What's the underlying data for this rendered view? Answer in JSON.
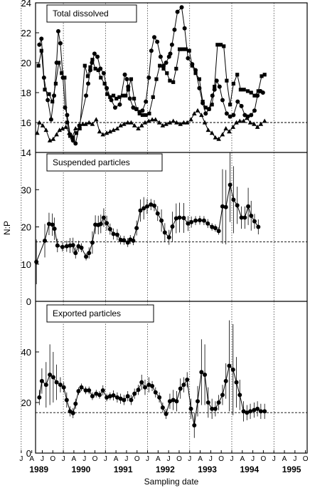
{
  "chart_data": {
    "type": "line",
    "ylabel": "N:P",
    "xlabel": "Sampling date",
    "x_ticks": {
      "months": [
        "J",
        "A",
        "J",
        "O",
        "J",
        "A",
        "J",
        "O",
        "J",
        "A",
        "J",
        "O",
        "J",
        "A",
        "J",
        "O",
        "J",
        "A",
        "J",
        "O",
        "J",
        "A",
        "J",
        "O",
        "J",
        "A",
        "J",
        "O"
      ],
      "years": [
        "1989",
        "1990",
        "1991",
        "1992",
        "1993",
        "1994",
        "1995"
      ]
    },
    "reference_line": 16,
    "panels": [
      {
        "title": "Total dissolved",
        "ylim": [
          14,
          24
        ],
        "yticks": [
          "14",
          "16",
          "18",
          "20",
          "22",
          "24"
        ],
        "series": [
          {
            "marker": "circle",
            "x": [
              1989.47,
              1989.52,
              1989.58,
              1989.67,
              1989.75,
              1989.82,
              1989.88,
              1989.92,
              1989.97,
              1990.03,
              1990.08,
              1990.13,
              1990.2,
              1990.27,
              1990.33,
              1990.42,
              1990.58,
              1990.63,
              1990.68,
              1990.72,
              1990.78,
              1990.85,
              1990.92,
              1991.0,
              1991.07,
              1991.18,
              1991.27,
              1991.38,
              1991.5,
              1991.55,
              1991.58,
              1991.62,
              1991.7,
              1991.77,
              1991.85,
              1991.92,
              1992.0,
              1992.07,
              1992.13,
              1992.2,
              1992.27,
              1992.35,
              1992.42,
              1992.48,
              1992.55,
              1992.58,
              1992.62,
              1992.68,
              1992.75,
              1992.85,
              1992.92,
              1993.0,
              1993.1,
              1993.18,
              1993.27,
              1993.35,
              1993.42,
              1993.5,
              1993.58,
              1993.63,
              1993.68,
              1993.75,
              1993.82,
              1993.92,
              1994.0,
              1994.08,
              1994.18,
              1994.27,
              1994.35,
              1994.42,
              1994.5,
              1994.58,
              1994.65,
              1994.72,
              1994.78
            ],
            "y": [
              21.2,
              21.6,
              19.0,
              17.5,
              16.2,
              17.8,
              20.0,
              22.1,
              21.3,
              19.0,
              17.0,
              16.5,
              15.2,
              14.8,
              14.6,
              15.8,
              17.8,
              18.6,
              19.5,
              20.0,
              20.6,
              20.4,
              19.6,
              19.3,
              18.3,
              17.5,
              17.0,
              17.2,
              19.2,
              18.9,
              18.4,
              17.6,
              17.0,
              16.9,
              16.7,
              16.8,
              17.4,
              19.0,
              20.8,
              21.7,
              21.4,
              20.4,
              19.8,
              20.0,
              20.4,
              20.6,
              21.2,
              22.2,
              23.4,
              23.7,
              22.3,
              20.3,
              19.9,
              19.5,
              18.3,
              17.3,
              16.6,
              16.9,
              17.8,
              18.2,
              18.8,
              18.4,
              17.5,
              16.6,
              16.4,
              16.5,
              17.4,
              17.1,
              16.5,
              16.4,
              16.5,
              16.8,
              17.8,
              18.1,
              18.0
            ]
          },
          {
            "marker": "square",
            "x": [
              1989.45,
              1989.52,
              1989.6,
              1989.7,
              1989.78,
              1989.86,
              1989.93,
              1990.0,
              1990.07,
              1990.13,
              1990.2,
              1990.27,
              1990.35,
              1990.43,
              1990.55,
              1990.62,
              1990.68,
              1990.73,
              1990.8,
              1990.87,
              1990.93,
              1991.02,
              1991.08,
              1991.15,
              1991.23,
              1991.3,
              1991.37,
              1991.45,
              1991.52,
              1991.58,
              1991.65,
              1991.72,
              1991.78,
              1991.85,
              1991.92,
              1992.0,
              1992.08,
              1992.17,
              1992.25,
              1992.33,
              1992.42,
              1992.5,
              1992.57,
              1992.65,
              1992.72,
              1992.8,
              1992.87,
              1992.95,
              1993.03,
              1993.1,
              1993.18,
              1993.27,
              1993.35,
              1993.42,
              1993.5,
              1993.57,
              1993.63,
              1993.7,
              1993.78,
              1993.85,
              1993.92,
              1994.0,
              1994.08,
              1994.17,
              1994.25,
              1994.33,
              1994.42,
              1994.5,
              1994.58,
              1994.67,
              1994.75,
              1994.82
            ],
            "y": [
              19.8,
              20.8,
              18.2,
              17.9,
              17.4,
              18.6,
              20.0,
              19.3,
              19.0,
              16.0,
              15.1,
              15.0,
              15.3,
              15.6,
              19.8,
              19.1,
              19.7,
              20.2,
              19.6,
              19.5,
              19.0,
              18.6,
              17.9,
              17.7,
              17.8,
              17.6,
              17.7,
              17.8,
              17.8,
              18.2,
              18.9,
              17.6,
              16.9,
              16.6,
              16.5,
              16.5,
              16.6,
              17.7,
              18.9,
              19.8,
              19.6,
              19.3,
              18.8,
              18.7,
              19.6,
              20.9,
              20.9,
              20.9,
              20.8,
              19.8,
              19.3,
              18.9,
              17.4,
              17.0,
              16.9,
              17.2,
              18.4,
              21.2,
              21.2,
              21.1,
              18.8,
              17.2,
              18.6,
              19.2,
              18.2,
              18.2,
              18.1,
              18.0,
              17.8,
              18.1,
              19.1,
              19.2
            ]
          },
          {
            "marker": "triangle",
            "x": [
              1989.42,
              1989.47,
              1989.55,
              1989.63,
              1989.72,
              1989.8,
              1989.88,
              1989.95,
              1990.02,
              1990.1,
              1990.18,
              1990.25,
              1990.33,
              1990.42,
              1990.5,
              1990.57,
              1990.65,
              1990.73,
              1990.82,
              1990.9,
              1990.98,
              1991.07,
              1991.15,
              1991.23,
              1991.32,
              1991.4,
              1991.48,
              1991.57,
              1991.65,
              1991.73,
              1991.82,
              1991.9,
              1991.98,
              1992.07,
              1992.15,
              1992.23,
              1992.32,
              1992.4,
              1992.48,
              1992.57,
              1992.65,
              1992.73,
              1992.82,
              1992.9,
              1992.98,
              1993.07,
              1993.15,
              1993.23,
              1993.32,
              1993.4,
              1993.48,
              1993.57,
              1993.65,
              1993.73,
              1993.82,
              1993.9,
              1993.98,
              1994.07,
              1994.15,
              1994.23,
              1994.32,
              1994.4,
              1994.48,
              1994.57,
              1994.65,
              1994.73,
              1994.82
            ],
            "y": [
              15.3,
              16.0,
              15.8,
              15.5,
              14.8,
              14.9,
              15.2,
              15.5,
              15.6,
              15.7,
              15.3,
              15.0,
              15.6,
              15.6,
              15.9,
              15.9,
              16.0,
              15.9,
              16.2,
              15.4,
              15.2,
              15.3,
              15.4,
              15.5,
              15.6,
              15.8,
              15.9,
              16.0,
              16.0,
              15.8,
              15.6,
              15.8,
              16.0,
              16.1,
              16.2,
              16.2,
              16.0,
              15.8,
              15.9,
              16.0,
              16.1,
              16.0,
              15.9,
              16.0,
              16.0,
              16.2,
              16.6,
              16.8,
              16.5,
              16.0,
              15.5,
              15.3,
              15.0,
              14.9,
              15.2,
              15.6,
              15.4,
              15.7,
              16.0,
              16.1,
              16.1,
              16.3,
              16.0,
              15.9,
              15.7,
              15.9,
              16.1
            ]
          }
        ]
      },
      {
        "title": "Suspended particles",
        "ylim": [
          0,
          40
        ],
        "yticks": [
          "0",
          "10",
          "20",
          "30"
        ],
        "series": [
          {
            "marker": "circle",
            "x": [
              1989.4,
              1989.6,
              1989.7,
              1989.78,
              1989.83,
              1989.9,
              1990.02,
              1990.12,
              1990.2,
              1990.27,
              1990.33,
              1990.4,
              1990.47,
              1990.58,
              1990.65,
              1990.73,
              1990.8,
              1990.87,
              1990.93,
              1991.0,
              1991.07,
              1991.15,
              1991.23,
              1991.32,
              1991.4,
              1991.48,
              1991.57,
              1991.63,
              1991.7,
              1991.78,
              1991.87,
              1991.95,
              1992.03,
              1992.12,
              1992.2,
              1992.28,
              1992.37,
              1992.45,
              1992.55,
              1992.63,
              1992.72,
              1992.8,
              1992.9,
              1993.0,
              1993.08,
              1993.18,
              1993.28,
              1993.38,
              1993.47,
              1993.57,
              1993.65,
              1993.73,
              1993.82,
              1993.9,
              1994.0,
              1994.08,
              1994.17,
              1994.27,
              1994.35,
              1994.43,
              1994.5,
              1994.58,
              1994.67
            ],
            "y": [
              10.6,
              16.3,
              20.8,
              20.6,
              19.5,
              15.0,
              14.6,
              14.8,
              15.0,
              15.1,
              13.0,
              14.8,
              14.4,
              12.0,
              13.0,
              15.8,
              20.6,
              20.5,
              20.8,
              22.5,
              21.0,
              19.4,
              18.1,
              17.9,
              16.5,
              16.4,
              15.8,
              16.6,
              16.3,
              19.7,
              24.4,
              25.0,
              25.5,
              26.0,
              25.7,
              23.6,
              21.7,
              18.5,
              17.2,
              20.1,
              22.3,
              22.5,
              22.4,
              20.9,
              21.3,
              21.7,
              21.8,
              21.7,
              20.9,
              20.0,
              19.7,
              18.9,
              25.5,
              25.3,
              31.3,
              27.3,
              25.8,
              22.5,
              22.5,
              25.5,
              23.0,
              21.5,
              20.0
            ],
            "err": [
              6.0,
              4.5,
              3.0,
              3.0,
              3.0,
              1.8,
              1.2,
              1.5,
              2.0,
              2.0,
              1.5,
              1.5,
              1.2,
              1.0,
              1.5,
              3.0,
              2.5,
              2.5,
              2.5,
              2.5,
              2.0,
              1.5,
              1.5,
              1.5,
              1.2,
              1.2,
              1.2,
              1.2,
              1.2,
              2.0,
              3.0,
              3.0,
              2.0,
              1.5,
              1.5,
              2.0,
              3.0,
              2.5,
              2.0,
              4.0,
              4.0,
              4.0,
              4.0,
              2.0,
              1.5,
              1.2,
              1.2,
              1.2,
              1.2,
              1.0,
              1.0,
              1.0,
              10.0,
              10.0,
              10.0,
              9.0,
              5.0,
              3.0,
              3.0,
              5.0,
              4.0,
              2.0,
              2.0
            ]
          }
        ]
      },
      {
        "title": "Exported particles",
        "ylim": [
          0,
          60
        ],
        "yticks": [
          "0",
          "20",
          "40"
        ],
        "series": [
          {
            "marker": "circle",
            "x": [
              1989.47,
              1989.53,
              1989.63,
              1989.72,
              1989.8,
              1989.88,
              1989.97,
              1990.05,
              1990.12,
              1990.2,
              1990.27,
              1990.33,
              1990.4,
              1990.47,
              1990.57,
              1990.65,
              1990.73,
              1990.82,
              1990.9,
              1990.98,
              1991.07,
              1991.15,
              1991.23,
              1991.32,
              1991.4,
              1991.48,
              1991.57,
              1991.65,
              1991.73,
              1991.82,
              1991.9,
              1991.98,
              1992.07,
              1992.15,
              1992.23,
              1992.32,
              1992.4,
              1992.48,
              1992.57,
              1992.65,
              1992.73,
              1992.82,
              1992.9,
              1992.98,
              1993.07,
              1993.15,
              1993.23,
              1993.32,
              1993.4,
              1993.48,
              1993.57,
              1993.65,
              1993.73,
              1993.82,
              1993.9,
              1993.98,
              1994.07,
              1994.15,
              1994.23,
              1994.32,
              1994.4,
              1994.48,
              1994.57,
              1994.65,
              1994.73,
              1994.82
            ],
            "y": [
              22.0,
              28.5,
              27.0,
              31.0,
              30.0,
              28.0,
              27.0,
              26.0,
              21.0,
              16.5,
              15.8,
              19.5,
              24.5,
              26.0,
              24.8,
              24.8,
              22.5,
              23.5,
              23.0,
              24.8,
              22.0,
              22.5,
              22.8,
              22.0,
              21.5,
              21.0,
              22.5,
              21.0,
              23.5,
              25.0,
              28.0,
              26.0,
              27.0,
              26.5,
              24.0,
              22.0,
              18.0,
              15.5,
              20.5,
              21.0,
              20.5,
              25.5,
              27.0,
              29.0,
              17.5,
              11.0,
              20.5,
              32.0,
              31.0,
              20.0,
              17.5,
              17.5,
              20.0,
              23.0,
              28.5,
              34.5,
              33.0,
              28.0,
              23.0,
              16.5,
              16.0,
              16.5,
              17.0,
              17.5,
              16.5,
              16.5
            ],
            "err": [
              3.0,
              5.0,
              9.0,
              12.0,
              10.0,
              7.0,
              3.0,
              2.0,
              3.0,
              2.0,
              2.0,
              2.0,
              1.5,
              1.5,
              1.5,
              1.5,
              1.5,
              1.5,
              1.5,
              2.0,
              1.5,
              1.5,
              2.0,
              2.0,
              2.0,
              2.0,
              2.0,
              2.0,
              2.0,
              2.0,
              3.0,
              3.0,
              3.0,
              2.0,
              2.0,
              2.0,
              2.0,
              2.0,
              3.0,
              4.0,
              4.0,
              4.0,
              3.0,
              3.0,
              4.0,
              5.0,
              6.0,
              13.0,
              12.0,
              6.0,
              4.0,
              3.0,
              3.0,
              4.0,
              7.0,
              18.0,
              18.0,
              10.0,
              6.0,
              4.0,
              3.0,
              3.0,
              3.0,
              3.0,
              3.0,
              3.0
            ]
          }
        ]
      }
    ]
  }
}
